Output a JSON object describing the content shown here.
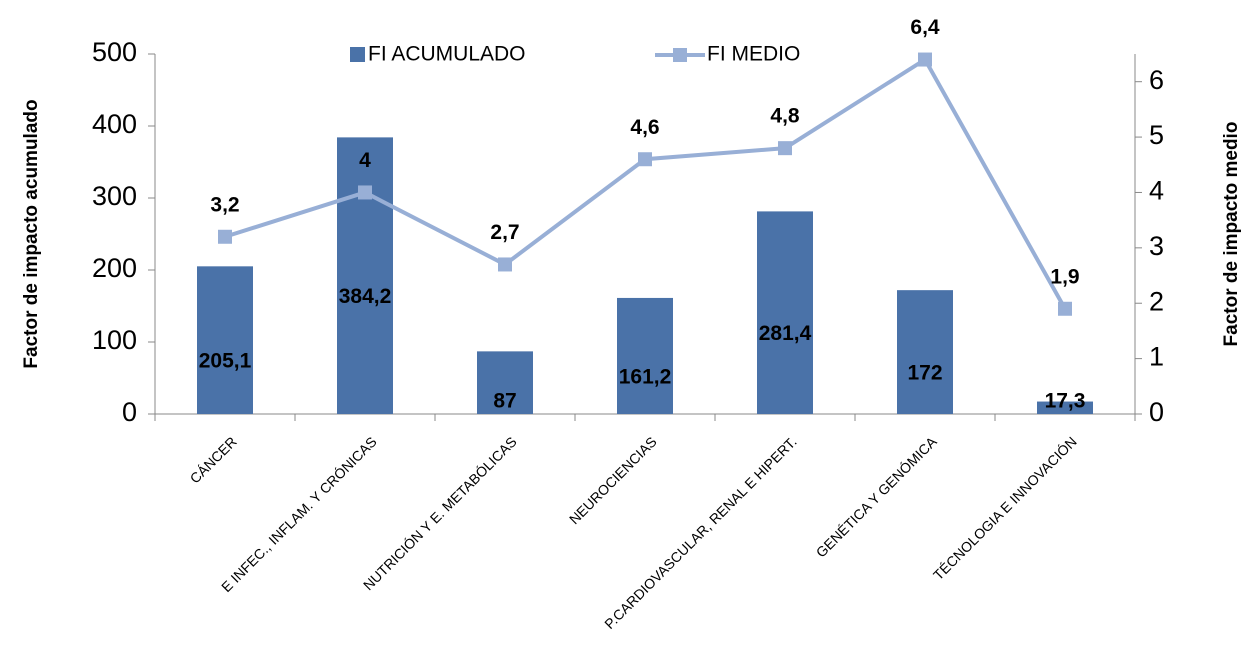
{
  "chart_data": {
    "type": "bar_line",
    "categories": [
      "CÁNCER",
      "E INFEC., INFLAM. Y CRÓNICAS",
      "NUTRICIÓN Y E. METABÓLICAS",
      "NEUROCIENCIAS",
      "P.CARDIOVASCULAR, RENAL E HIPERT.",
      "GENÉTICA Y GENÓMICA",
      "TÉCNOLOGIA E INNOVACIÓN"
    ],
    "series": [
      {
        "name": "FI ACUMULADO",
        "type": "bar",
        "color": "#4a72a8",
        "values": [
          205.1,
          384.2,
          87,
          161.2,
          281.4,
          172,
          17.3
        ],
        "value_labels": [
          "205,1",
          "384,2",
          "87",
          "161,2",
          "281,4",
          "172",
          "17,3"
        ]
      },
      {
        "name": "FI MEDIO",
        "type": "line",
        "axis": "y2",
        "color": "#98afd6",
        "values": [
          3.2,
          4,
          2.7,
          4.6,
          4.8,
          6.4,
          1.9
        ],
        "value_labels": [
          "3,2",
          "4",
          "2,7",
          "4,6",
          "4,8",
          "6,4",
          "1,9"
        ]
      }
    ],
    "ylabel": "Factor de impacto acumulado",
    "y2label": "Factor de impacto medio",
    "ylim": [
      0,
      500
    ],
    "yticks": [
      0,
      100,
      200,
      300,
      400,
      500
    ],
    "y2lim": [
      0,
      6.5
    ],
    "y2ticks": [
      0,
      1,
      2,
      3,
      4,
      5,
      6
    ],
    "legend": "top",
    "grid": false
  }
}
